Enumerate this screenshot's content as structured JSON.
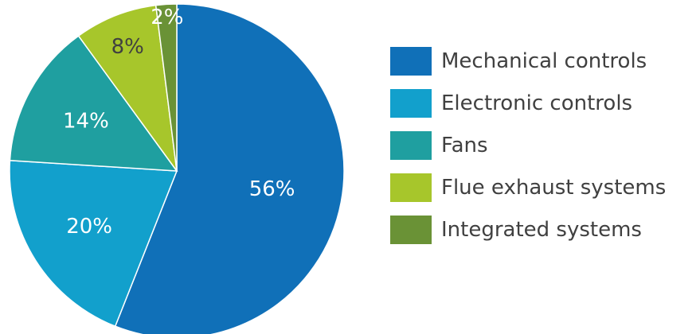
{
  "chart_data": {
    "type": "pie",
    "title": "",
    "categories": [
      "Mechanical controls",
      "Electronic controls",
      "Fans",
      "Flue exhaust systems",
      "Integrated systems"
    ],
    "values": [
      56,
      20,
      14,
      8,
      2
    ],
    "value_labels": [
      "56%",
      "20%",
      "14%",
      "8%",
      "2%"
    ],
    "colors": [
      "#1070b8",
      "#12a0cc",
      "#1f9fa0",
      "#a7c62b",
      "#6a9236"
    ],
    "start_angle_deg": 0,
    "direction": "clockwise",
    "legend_position": "right"
  }
}
